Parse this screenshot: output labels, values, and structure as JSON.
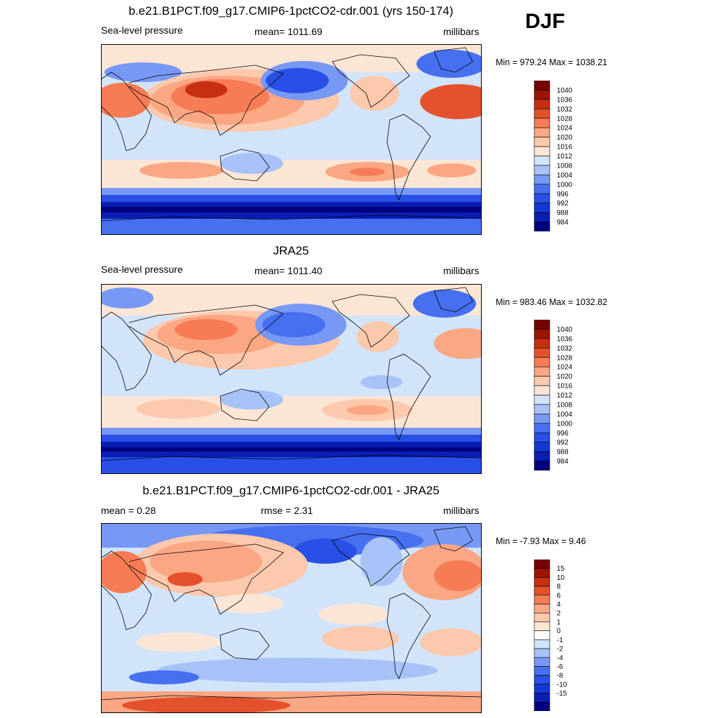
{
  "season": "DJF",
  "colors": {
    "slp_levels": [
      "#000080",
      "#0a1eb4",
      "#1438d2",
      "#2850e6",
      "#4670f0",
      "#7898f5",
      "#a8c2f8",
      "#d2e4fa",
      "#fbe6d6",
      "#fcc9ad",
      "#fba784",
      "#f77c55",
      "#e4522d",
      "#c72e12",
      "#9e1402",
      "#780000"
    ],
    "diff_levels": [
      "#000080",
      "#0a1eb4",
      "#1438d2",
      "#2850e6",
      "#4670f0",
      "#7898f5",
      "#a8c2f8",
      "#d2e4fa",
      "#ffffff",
      "#fbe6d6",
      "#fcc9ad",
      "#fba784",
      "#f77c55",
      "#e4522d",
      "#c72e12",
      "#9e1402",
      "#780000"
    ]
  },
  "chart_data": [
    {
      "type": "heatmap",
      "title": "b.e21.B1PCT.f09_g17.CMIP6-1pctCO2-cdr.001 (yrs 150-174)",
      "left_label": "Sea-level pressure",
      "center_label": "mean= 1011.69",
      "right_label": "millibars",
      "minmax": "Min = 979.24 Max = 1038.21",
      "colorbar": [
        "1040",
        "1036",
        "1032",
        "1028",
        "1024",
        "1020",
        "1016",
        "1012",
        "1008",
        "1004",
        "1000",
        "996",
        "992",
        "988",
        "984"
      ]
    },
    {
      "type": "heatmap",
      "title": "JRA25",
      "left_label": "Sea-level pressure",
      "center_label": "mean= 1011.40",
      "right_label": "millibars",
      "minmax": "Min = 983.46 Max = 1032.82",
      "colorbar": [
        "1040",
        "1036",
        "1032",
        "1028",
        "1024",
        "1020",
        "1016",
        "1012",
        "1008",
        "1004",
        "1000",
        "996",
        "992",
        "988",
        "984"
      ]
    },
    {
      "type": "heatmap",
      "title": "b.e21.B1PCT.f09_g17.CMIP6-1pctCO2-cdr.001 - JRA25",
      "left_label": "mean =   0.28",
      "center_label": "rmse =   2.31",
      "right_label": "millibars",
      "minmax": "Min =  -7.93 Max =   9.46",
      "colorbar": [
        "15",
        "10",
        "8",
        "6",
        "4",
        "2",
        "1",
        "0",
        "-1",
        "-2",
        "-4",
        "-6",
        "-8",
        "-10",
        "-15"
      ]
    }
  ]
}
